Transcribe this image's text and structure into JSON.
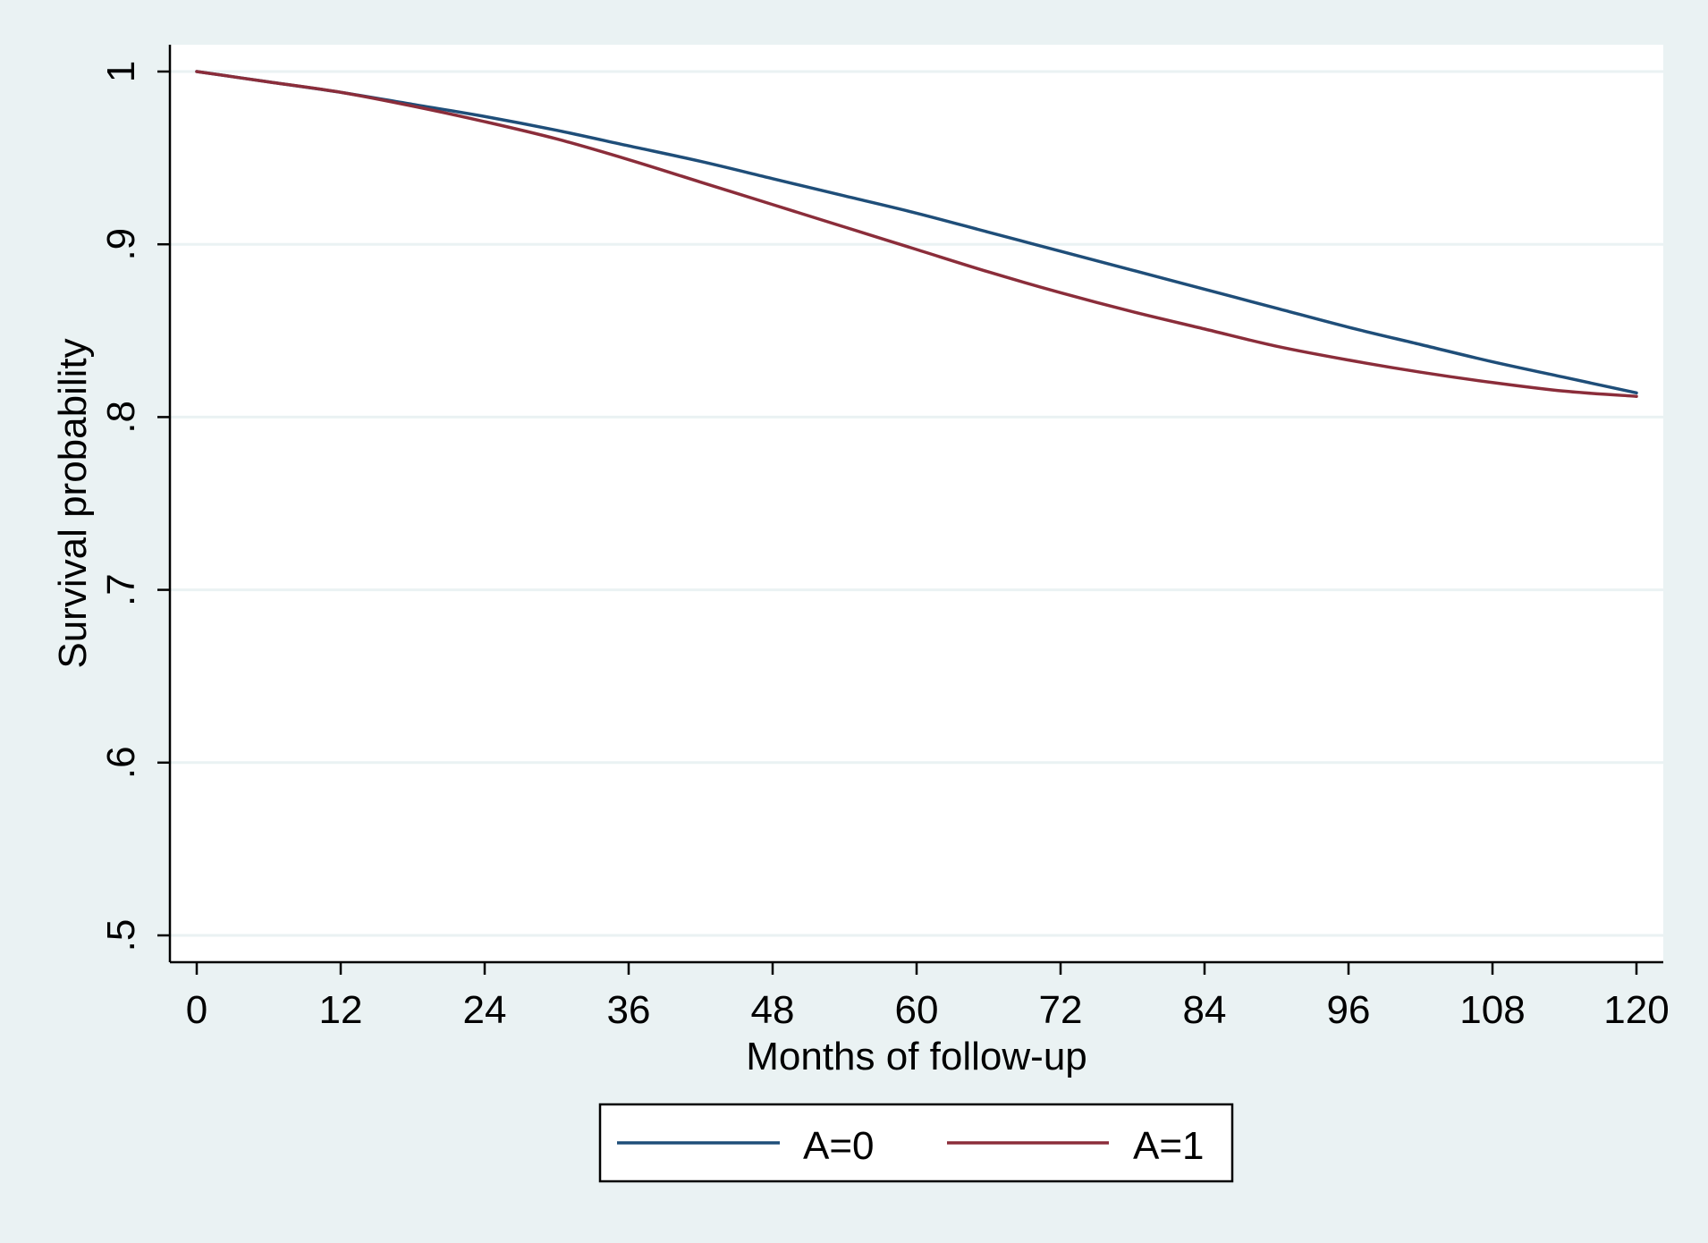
{
  "chart_data": {
    "type": "line",
    "title": "",
    "xlabel": "Months of follow-up",
    "ylabel": "Survival probability",
    "xlim": [
      0,
      120
    ],
    "ylim": [
      0.5,
      1
    ],
    "x_ticks": [
      0,
      12,
      24,
      36,
      48,
      60,
      72,
      84,
      96,
      108,
      120
    ],
    "x_tick_labels": [
      "0",
      "12",
      "24",
      "36",
      "48",
      "60",
      "72",
      "84",
      "96",
      "108",
      "120"
    ],
    "y_ticks": [
      0.5,
      0.6,
      0.7,
      0.8,
      0.9,
      1.0
    ],
    "y_tick_labels": [
      ".5",
      ".6",
      ".7",
      ".8",
      ".9",
      "1"
    ],
    "grid": "horizontal",
    "legend_position": "bottom",
    "background_color": "#eaf2f3",
    "plot_background": "#ffffff",
    "gridline_color": "#eaf2f3",
    "series": [
      {
        "name": "A=0",
        "color": "#1f4e79",
        "x": [
          0,
          6,
          12,
          18,
          24,
          30,
          36,
          42,
          48,
          54,
          60,
          66,
          72,
          78,
          84,
          90,
          96,
          102,
          108,
          114,
          120
        ],
        "y": [
          1.0,
          0.994,
          0.988,
          0.981,
          0.974,
          0.966,
          0.957,
          0.948,
          0.938,
          0.928,
          0.918,
          0.907,
          0.896,
          0.885,
          0.874,
          0.863,
          0.852,
          0.842,
          0.832,
          0.823,
          0.814
        ]
      },
      {
        "name": "A=1",
        "color": "#8b2d3a",
        "x": [
          0,
          6,
          12,
          18,
          24,
          30,
          36,
          42,
          48,
          54,
          60,
          66,
          72,
          78,
          84,
          90,
          96,
          102,
          108,
          114,
          120
        ],
        "y": [
          1.0,
          0.994,
          0.988,
          0.98,
          0.971,
          0.961,
          0.949,
          0.936,
          0.923,
          0.91,
          0.897,
          0.884,
          0.872,
          0.861,
          0.851,
          0.841,
          0.833,
          0.826,
          0.82,
          0.815,
          0.812
        ]
      }
    ]
  }
}
